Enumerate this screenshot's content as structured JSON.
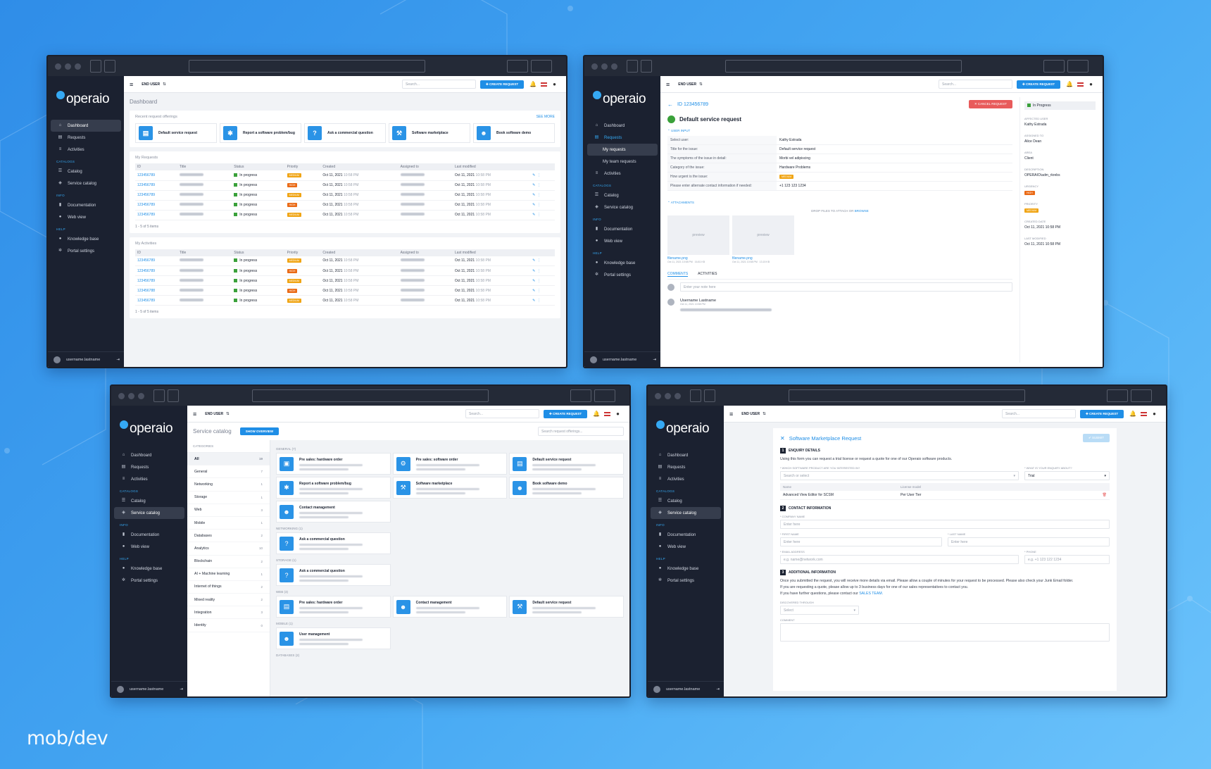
{
  "brand": "mob/dev",
  "common": {
    "logo": "operaio",
    "end_user": "END USER",
    "search_placeholder": "Search...",
    "create_request": "CREATE REQUEST",
    "username": "username.lastname",
    "sidebar": {
      "dashboard": "Dashboard",
      "requests": "Requests",
      "activities": "Activities",
      "catalogs": "CATALOGS",
      "catalog": "Catalog",
      "service_catalog": "Service catalog",
      "info": "INFO",
      "documentation": "Documentation",
      "web_view": "Web view",
      "help": "HELP",
      "knowledge_base": "Knowledge base",
      "portal_settings": "Portal settings",
      "my_requests": "My requests",
      "my_team_requests": "My team requests"
    }
  },
  "dashboard": {
    "title": "Dashboard",
    "recent": "Recent request offerings",
    "see_more": "SEE MORE",
    "offerings": [
      "Default service request",
      "Report a software problem/bug",
      "Ask a commercial question",
      "Software marketplace",
      "Book software demo"
    ],
    "my_requests": "My Requests",
    "my_activities": "My Activities",
    "columns": [
      "ID",
      "Title",
      "Status",
      "Priority",
      "Created",
      "Assigned to",
      "Last modified"
    ],
    "rows": [
      {
        "id": "123456789",
        "status": "In progress",
        "priority": "MEDIUM",
        "created": "Oct 11, 2021",
        "time": "10:58 PM",
        "modified": "Oct 11, 2021",
        "mtime": "10:58 PM"
      },
      {
        "id": "123456789",
        "status": "In progress",
        "priority": "HIGH",
        "created": "Oct 11, 2021",
        "time": "10:58 PM",
        "modified": "Oct 11, 2021",
        "mtime": "10:58 PM"
      },
      {
        "id": "123456789",
        "status": "In progress",
        "priority": "MEDIUM",
        "created": "Oct 11, 2021",
        "time": "10:58 PM",
        "modified": "Oct 11, 2021",
        "mtime": "10:58 PM"
      },
      {
        "id": "123456789",
        "status": "In progress",
        "priority": "HIGH",
        "created": "Oct 11, 2021",
        "time": "10:58 PM",
        "modified": "Oct 11, 2021",
        "mtime": "10:58 PM"
      },
      {
        "id": "123456789",
        "status": "In progress",
        "priority": "MEDIUM",
        "created": "Oct 11, 2021",
        "time": "10:58 PM",
        "modified": "Oct 11, 2021",
        "mtime": "10:58 PM"
      }
    ],
    "activity_rows": [
      {
        "id": "123456789",
        "status": "In progress",
        "priority": "MEDIUM"
      },
      {
        "id": "123456789",
        "status": "In progress",
        "priority": "HIGH"
      },
      {
        "id": "123456789",
        "status": "In progress",
        "priority": "MEDIUM"
      },
      {
        "id": "123456788",
        "status": "In progress",
        "priority": "HIGH"
      },
      {
        "id": "123456789",
        "status": "In progress",
        "priority": "MEDIUM"
      }
    ],
    "footer": "1 - 5 of 5 items"
  },
  "detail": {
    "id": "ID 123456789",
    "cancel": "CANCEL REQUEST",
    "title": "Default service request",
    "user_input": "USER INPUT",
    "status": "In Progress",
    "fields": [
      [
        "Select user:",
        "Kathy Estrada"
      ],
      [
        "Title for the issue:",
        "Default service request"
      ],
      [
        "The symptoms of the issue in detail:",
        "Morbi vel adipiscing"
      ],
      [
        "Category of the issue:",
        "Hardware Problems"
      ],
      [
        "How urgent is the issue:",
        "MEDIUM"
      ],
      [
        "Please enter alternate contact information if needed:",
        "+1 123 123 1234"
      ]
    ],
    "attachments": "ATTACHMENTS",
    "drop": "DROP FILES TO ATTACH OR",
    "browse": "BROWSE",
    "preview": "preview",
    "filename": "filename.png",
    "fdate": "Oct 11, 2021 10:58 PM",
    "fsize1": "16.81 KB",
    "fsize2": "13.15 KB",
    "tabs": [
      "COMMENTS",
      "ACTIVITIES"
    ],
    "note_placeholder": "Enter your note here",
    "commenter": "Username Lastname",
    "cdate": "Oct 11, 2021 10:58 PM",
    "side": [
      [
        "AFFECTED USER",
        "Kathy Estrada"
      ],
      [
        "ASSIGNED TO",
        "Alice Dean"
      ],
      [
        "AREA",
        "Client"
      ],
      [
        "DESCRIPTION",
        "OPERAIO\\adm_rkrebs"
      ]
    ],
    "urgency": "URGENCY",
    "urg_val": "HIGH",
    "priority": "PRIORITY",
    "pri_val": "MEDIUM",
    "created_l": "CREATED DATE",
    "created_v": "Oct 11, 2021 10:58 PM",
    "modified_l": "LAST MODIFIED",
    "modified_v": "Oct 11, 2021 10:58 PM"
  },
  "catalog": {
    "title": "Service catalog",
    "overview": "SHOW OVERVIEW",
    "search": "Search request offerings...",
    "categories": "CATEGORIES",
    "cats": [
      [
        "All",
        "19"
      ],
      [
        "General",
        "7"
      ],
      [
        "Networking",
        "1"
      ],
      [
        "Storage",
        "1"
      ],
      [
        "Web",
        "3"
      ],
      [
        "Mobile",
        "1"
      ],
      [
        "Databases",
        "2"
      ],
      [
        "Analytics",
        "10"
      ],
      [
        "Blockchain",
        "2"
      ],
      [
        "AI + Machine learning",
        "1"
      ],
      [
        "Internet of things",
        "2"
      ],
      [
        "Mixed reality",
        "2"
      ],
      [
        "Integration",
        "3"
      ],
      [
        "Identity",
        "0"
      ]
    ],
    "groups": [
      {
        "name": "GENERAL (7)",
        "items": [
          "Pre sales: hardware order",
          "Pre sales: software order",
          "Default service request",
          "Report a software problem/bug",
          "Software marketplace",
          "Book software demo",
          "Contact management"
        ]
      },
      {
        "name": "NETWORKING (1)",
        "items": [
          "Ask a commercial question"
        ]
      },
      {
        "name": "STORAGE (1)",
        "items": [
          "Ask a commercial question"
        ]
      },
      {
        "name": "WEB (3)",
        "items": [
          "Pre sales: hardware order",
          "Contact management",
          "Default service request"
        ]
      },
      {
        "name": "MOBILE (1)",
        "items": [
          "User management"
        ]
      },
      {
        "name": "DATABASES (2)",
        "items": []
      }
    ]
  },
  "form": {
    "title": "Software Marketplace Request",
    "submit": "SUBMIT",
    "enquiry": "ENQUIRY DETAILS",
    "intro": "Using this form you can request a trial license or request a quote for one of our Operaio software products.",
    "q1": "* WHICH SOFTWARE PRODUCT ARE YOU INTERESTED IN?",
    "q1p": "Search or select",
    "q2": "* WHAT IS YOUR ENQUIRY ABOUT?",
    "q2v": "Trial",
    "col_name": "Name",
    "col_license": "License model",
    "prod": "Advanced View Editor for SCSM",
    "lic": "Per User Tier",
    "contact": "CONTACT INFORMATION",
    "company": "* COMPANY NAME",
    "enter": "Enter here",
    "first": "* FIRST NAME",
    "last": "* LAST NAME",
    "email": "* EMAIL ADDRESS",
    "email_p": "e.g. name@network.com",
    "phone": "* PHONE",
    "phone_p": "e.g. +1 123 122 1234",
    "additional": "ADDITIONAL INFORMATION",
    "p1": "Once you submitted the request, you will receive more details via email. Please allow a couple of minutes for your request to be processed. Please also check your Junk Email folder.",
    "p2": "If you are requesting a quote, please allow up to 3 business days for one of our sales representatives to contact you.",
    "p3": "If you have further questions, please contact our",
    "sales": "SALES TEAM.",
    "disc": "DISCOVERED THROUGH",
    "select": "Select",
    "comment": "COMMENT"
  },
  "colors": {
    "accent": "#1f8ee6",
    "sidebar": "#1b2130",
    "medium": "#f0a515",
    "high": "#ea6a15",
    "cancel": "#e85b5b"
  }
}
